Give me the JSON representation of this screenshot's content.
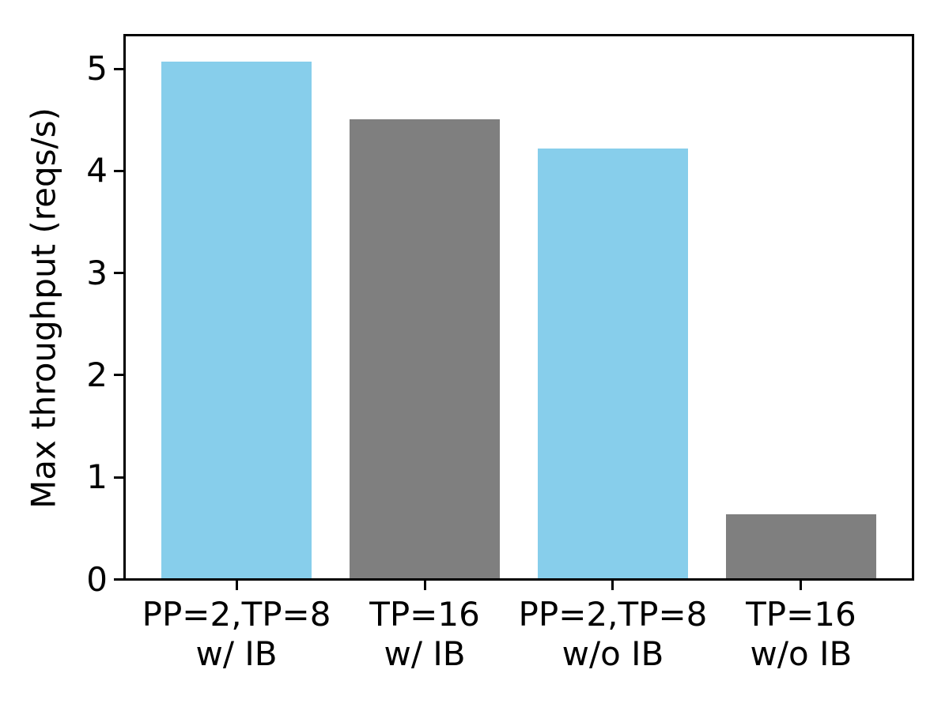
{
  "chart_data": {
    "type": "bar",
    "title": "",
    "xlabel": "",
    "ylabel": "Max throughput (reqs/s)",
    "categories": [
      [
        "PP=2,TP=8",
        "w/ IB"
      ],
      [
        "TP=16",
        "w/ IB"
      ],
      [
        "PP=2,TP=8",
        "w/o IB"
      ],
      [
        "TP=16",
        "w/o IB"
      ]
    ],
    "values": [
      5.07,
      4.51,
      4.22,
      0.64
    ],
    "bar_colors": [
      "#87CEEB",
      "#7f7f7f",
      "#87CEEB",
      "#7f7f7f"
    ],
    "yticks": [
      0,
      1,
      2,
      3,
      4,
      5
    ],
    "ylim": [
      0,
      5.33
    ],
    "xlim": [
      -0.595,
      3.595
    ],
    "bar_width_fraction": 0.8,
    "grid": false,
    "legend": "none"
  },
  "colors": {
    "axis": "#000000",
    "background": "#ffffff",
    "bar_blue": "#87CEEB",
    "bar_gray": "#7f7f7f"
  }
}
